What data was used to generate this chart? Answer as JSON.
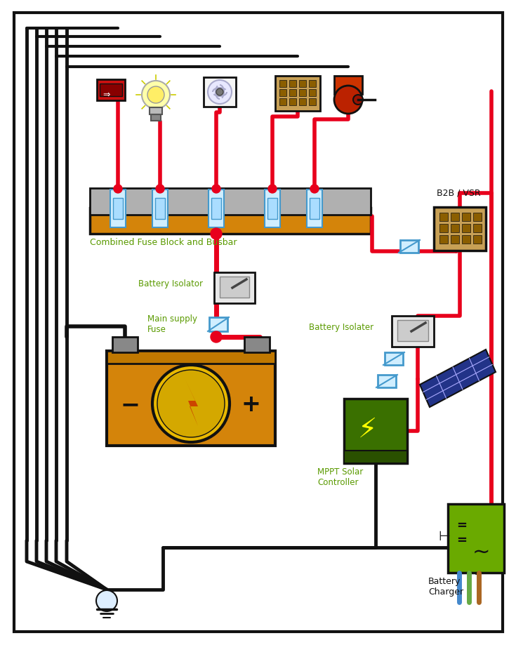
{
  "bg": "#ffffff",
  "red": "#e8001c",
  "black": "#111111",
  "orange": "#d4840a",
  "gray": "#b0b0b0",
  "blue_fuse": "#4499cc",
  "green": "#6aaa00",
  "green_dark": "#3a7000",
  "tan": "#c8a055",
  "label_green": "#5a9a00",
  "yellow": "#e8b800",
  "solar_blue": "#223388",
  "labels": {
    "busbar": "Combined Fuse Block and Busbar",
    "isolator1": "Battery Isolator",
    "main_fuse": "Main supply\nFuse",
    "isolater2": "Battery Isolater",
    "mppt": "MPPT Solar\nController",
    "b2b": "B2B / VSR",
    "charger": "Battery\nCharger"
  }
}
